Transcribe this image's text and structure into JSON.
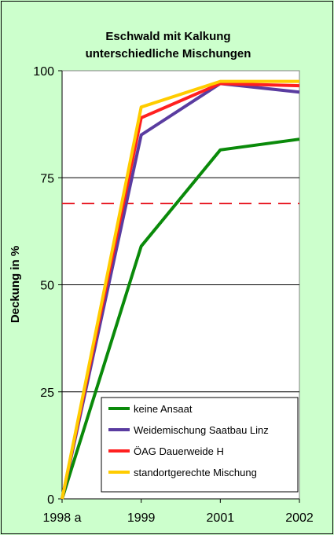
{
  "chart_data": {
    "type": "line",
    "title": [
      "Eschwald mit Kalkung",
      "unterschiedliche Mischungen"
    ],
    "xlabel": "",
    "ylabel": "Deckung in %",
    "categories": [
      "1998 a",
      "1999",
      "2001",
      "2002"
    ],
    "ylim": [
      0,
      100
    ],
    "yticks": [
      0,
      25,
      50,
      75,
      100
    ],
    "grid": true,
    "reference_line": {
      "value": 69,
      "color": "#e8202a",
      "style": "dashed"
    },
    "legend_position": "bottom-right",
    "series": [
      {
        "name": "keine Ansaat",
        "color": "#0a8a0a",
        "values": [
          0,
          59,
          81.5,
          84
        ]
      },
      {
        "name": "Weidemischung Saatbau Linz",
        "color": "#5a3ca0",
        "values": [
          0,
          85,
          97,
          95
        ]
      },
      {
        "name": "ÖAG Dauerweide H",
        "color": "#ff2020",
        "values": [
          0,
          89,
          97,
          96.5
        ]
      },
      {
        "name": "standortgerechte Mischung",
        "color": "#ffcc00",
        "values": [
          0,
          91.5,
          97.5,
          97.5
        ]
      }
    ]
  }
}
